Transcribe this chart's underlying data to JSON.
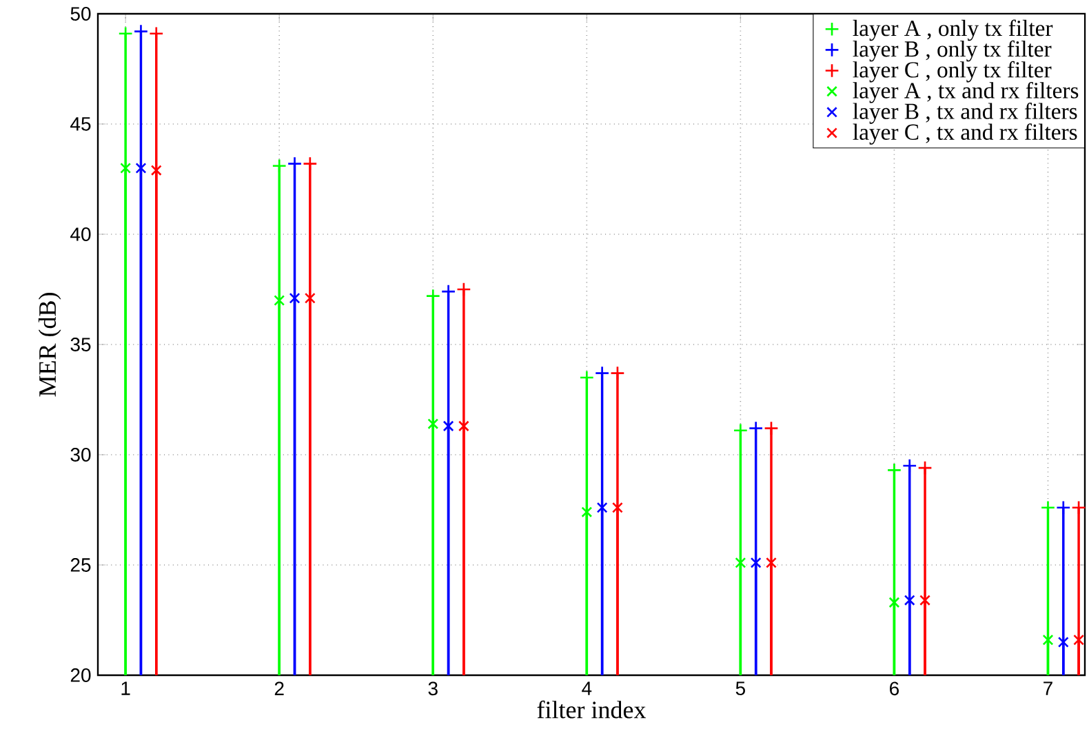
{
  "chart_data": {
    "type": "lollipop",
    "xlabel": "filter index",
    "ylabel": "MER (dB)",
    "xlim": [
      0.82,
      7.24
    ],
    "xticks": [
      1,
      2,
      3,
      4,
      5,
      6,
      7
    ],
    "ylim": [
      20,
      50
    ],
    "yticks": [
      20,
      25,
      30,
      35,
      40,
      45,
      50
    ],
    "grid": true,
    "legend": "top right",
    "series": [
      {
        "name": "layer A , only tx filter",
        "color": "#00ff00",
        "marker": "plus",
        "x": [
          1,
          2,
          3,
          4,
          5,
          6,
          7
        ],
        "values": [
          49.1,
          43.1,
          37.2,
          33.5,
          31.1,
          29.3,
          27.6
        ]
      },
      {
        "name": "layer B , only tx filter",
        "color": "#0000ff",
        "marker": "plus",
        "x": [
          1.1,
          2.1,
          3.1,
          4.1,
          5.1,
          6.1,
          7.1
        ],
        "values": [
          49.2,
          43.2,
          37.4,
          33.7,
          31.2,
          29.5,
          27.6
        ]
      },
      {
        "name": "layer C , only tx filter",
        "color": "#ff0000",
        "marker": "plus",
        "x": [
          1.2,
          2.2,
          3.2,
          4.2,
          5.2,
          6.2,
          7.2
        ],
        "values": [
          49.1,
          43.2,
          37.5,
          33.7,
          31.2,
          29.4,
          27.6
        ]
      },
      {
        "name": "layer A , tx and rx filters",
        "color": "#00ff00",
        "marker": "cross",
        "x": [
          1,
          2,
          3,
          4,
          5,
          6,
          7
        ],
        "values": [
          43.0,
          37.0,
          31.4,
          27.4,
          25.1,
          23.3,
          21.6
        ]
      },
      {
        "name": "layer B , tx and rx filters",
        "color": "#0000ff",
        "marker": "cross",
        "x": [
          1.1,
          2.1,
          3.1,
          4.1,
          5.1,
          6.1,
          7.1
        ],
        "values": [
          43.0,
          37.1,
          31.3,
          27.6,
          25.1,
          23.4,
          21.5
        ]
      },
      {
        "name": "layer C , tx and rx filters",
        "color": "#ff0000",
        "marker": "cross",
        "x": [
          1.2,
          2.2,
          3.2,
          4.2,
          5.2,
          6.2,
          7.2
        ],
        "values": [
          42.9,
          37.1,
          31.3,
          27.6,
          25.1,
          23.4,
          21.6
        ]
      }
    ]
  }
}
